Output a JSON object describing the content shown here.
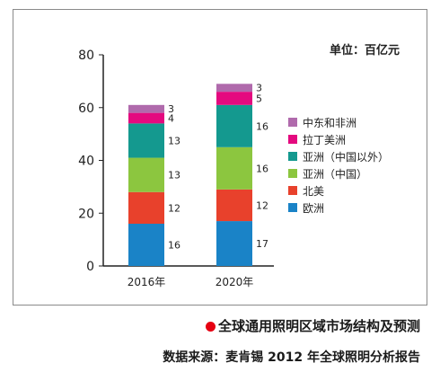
{
  "unit_label": "单位：百亿元",
  "caption": "全球通用照明区域市场结构及预测",
  "source": "数据来源：麦肯锡 2012 年全球照明分析报告",
  "colors": {
    "accent_dot": "#e60012"
  },
  "chart_data": {
    "type": "bar",
    "stacked": true,
    "categories": [
      "2016年",
      "2020年"
    ],
    "ylim": [
      0,
      80
    ],
    "yticks": [
      0,
      20,
      40,
      60,
      80
    ],
    "grid": false,
    "legend_position": "right",
    "series": [
      {
        "name": "欧洲",
        "color": "#1a83c7",
        "values": [
          16,
          17
        ]
      },
      {
        "name": "北美",
        "color": "#e8412c",
        "values": [
          12,
          12
        ]
      },
      {
        "name": "亚洲（中国）",
        "color": "#8cc63f",
        "values": [
          13,
          16
        ]
      },
      {
        "name": "亚洲（中国以外）",
        "color": "#14998f",
        "values": [
          13,
          16
        ]
      },
      {
        "name": "拉丁美洲",
        "color": "#e4097f",
        "values": [
          4,
          5
        ]
      },
      {
        "name": "中东和非洲",
        "color": "#b06aac",
        "values": [
          3,
          3
        ]
      }
    ]
  }
}
